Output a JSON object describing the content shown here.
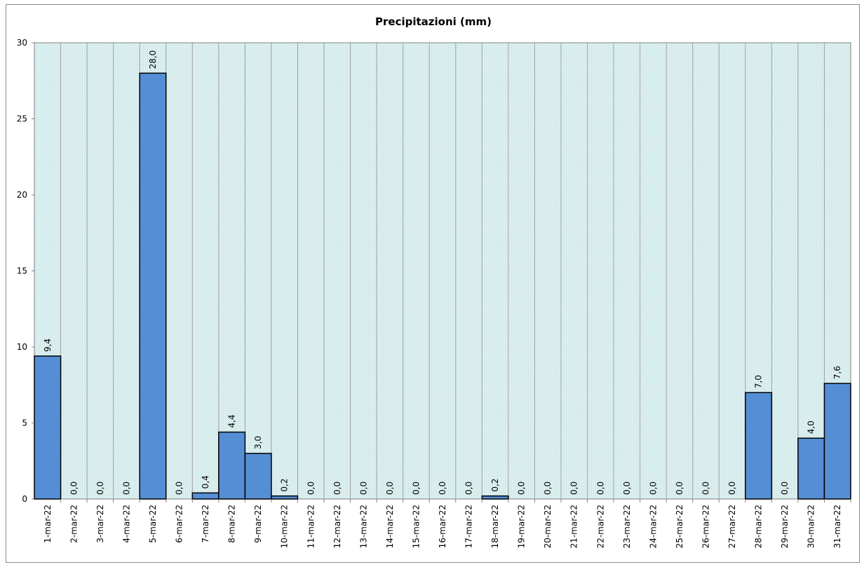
{
  "chart_data": {
    "type": "bar",
    "title": "Precipitazioni  (mm)",
    "xlabel": "",
    "ylabel": "",
    "ylim": [
      0,
      30
    ],
    "yticks": [
      "0",
      "5",
      "10",
      "15",
      "20",
      "25",
      "30"
    ],
    "grid": "vertical",
    "categories": [
      "1-mar-22",
      "2-mar-22",
      "3-mar-22",
      "4-mar-22",
      "5-mar-22",
      "6-mar-22",
      "7-mar-22",
      "8-mar-22",
      "9-mar-22",
      "10-mar-22",
      "11-mar-22",
      "12-mar-22",
      "13-mar-22",
      "14-mar-22",
      "15-mar-22",
      "16-mar-22",
      "17-mar-22",
      "18-mar-22",
      "19-mar-22",
      "20-mar-22",
      "21-mar-22",
      "22-mar-22",
      "23-mar-22",
      "24-mar-22",
      "25-mar-22",
      "26-mar-22",
      "27-mar-22",
      "28-mar-22",
      "29-mar-22",
      "30-mar-22",
      "31-mar-22"
    ],
    "values": [
      9.4,
      0,
      0,
      0,
      28,
      0,
      0.4,
      4.4,
      3,
      0.2,
      0,
      0,
      0,
      0,
      0,
      0,
      0,
      0.2,
      0,
      0,
      0,
      0,
      0,
      0,
      0,
      0,
      0,
      7,
      0,
      4,
      7.6
    ],
    "data_labels": [
      "9,4",
      "0,0",
      "0,0",
      "0,0",
      "28,0",
      "0,0",
      "0,4",
      "4,4",
      "3,0",
      "0,2",
      "0,0",
      "0,0",
      "0,0",
      "0,0",
      "0,0",
      "0,0",
      "0,0",
      "0,2",
      "0,0",
      "0,0",
      "0,0",
      "0,0",
      "0,0",
      "0,0",
      "0,0",
      "0,0",
      "0,0",
      "7,0",
      "0,0",
      "4,0",
      "7,6"
    ],
    "colors": {
      "bar": "#558ed5",
      "bar_border": "#000000",
      "plot_bg": "#dcefef",
      "grid": "#a0a0a0"
    }
  }
}
